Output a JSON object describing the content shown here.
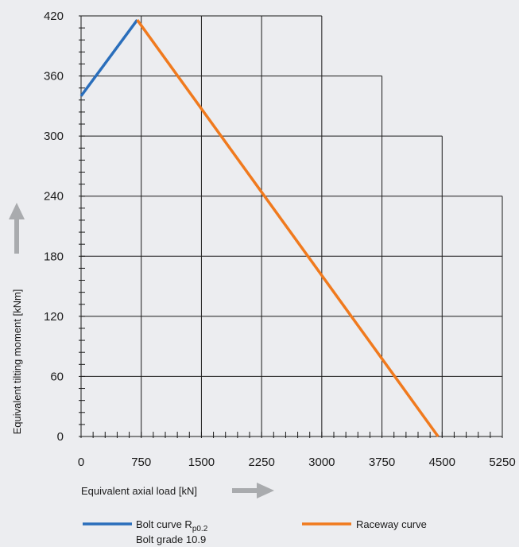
{
  "chart_data": {
    "type": "line",
    "xlabel": "Equivalent axial load [kN]",
    "ylabel": "Equivalent tilting moment [kNm]",
    "xlim": [
      0,
      5250
    ],
    "ylim": [
      0,
      420
    ],
    "x_ticks": [
      0,
      750,
      1500,
      2250,
      3000,
      3750,
      4500,
      5250
    ],
    "y_ticks": [
      0,
      60,
      120,
      180,
      240,
      300,
      360,
      420
    ],
    "grid": true,
    "legend_position": "bottom",
    "series": [
      {
        "name": "Bolt curve R",
        "name_subscript": "p0.2",
        "name_line2": "Bolt grade 10.9",
        "color": "#2a6ebb",
        "points": [
          [
            0,
            340
          ],
          [
            700,
            416
          ]
        ]
      },
      {
        "name": "Raceway curve",
        "color": "#f07a1e",
        "points": [
          [
            700,
            416
          ],
          [
            4450,
            0
          ]
        ]
      }
    ]
  },
  "colors": {
    "grid": "#1a1a1a",
    "arrow": "#a9abae",
    "background": "#ecedf0"
  },
  "icons": {
    "y_arrow": "arrow-up-icon",
    "x_arrow": "arrow-right-icon"
  }
}
